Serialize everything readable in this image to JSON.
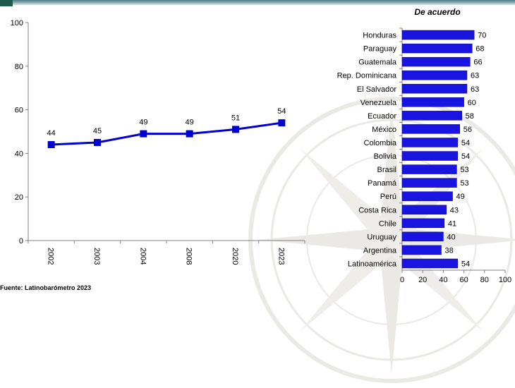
{
  "source": "Fuente: Latinobarómetro 2023",
  "chart_data": [
    {
      "type": "line",
      "x": [
        "2002",
        "2003",
        "2004",
        "2008",
        "2020",
        "2023"
      ],
      "series": [
        {
          "values": [
            44,
            45,
            49,
            49,
            51,
            54
          ]
        }
      ],
      "ylim": [
        0,
        100
      ],
      "yticks": [
        0,
        20,
        40,
        60,
        80,
        100
      ],
      "grid": false,
      "color": "#0000d0"
    },
    {
      "type": "bar",
      "orientation": "horizontal",
      "title": "De acuerdo",
      "categories": [
        "Honduras",
        "Paraguay",
        "Guatemala",
        "Rep. Dominicana",
        "El Salvador",
        "Venezuela",
        "Ecuador",
        "México",
        "Colombia",
        "Bolivia",
        "Brasil",
        "Panamá",
        "Perú",
        "Costa Rica",
        "Chile",
        "Uruguay",
        "Argentina",
        "Latinoamérica"
      ],
      "values": [
        70,
        68,
        66,
        63,
        63,
        60,
        58,
        56,
        54,
        54,
        53,
        53,
        49,
        43,
        41,
        40,
        38,
        54
      ],
      "xlim": [
        0,
        100
      ],
      "xticks": [
        0,
        20,
        40,
        60,
        80,
        100
      ],
      "grid": false,
      "color": "#1a14e0"
    }
  ]
}
